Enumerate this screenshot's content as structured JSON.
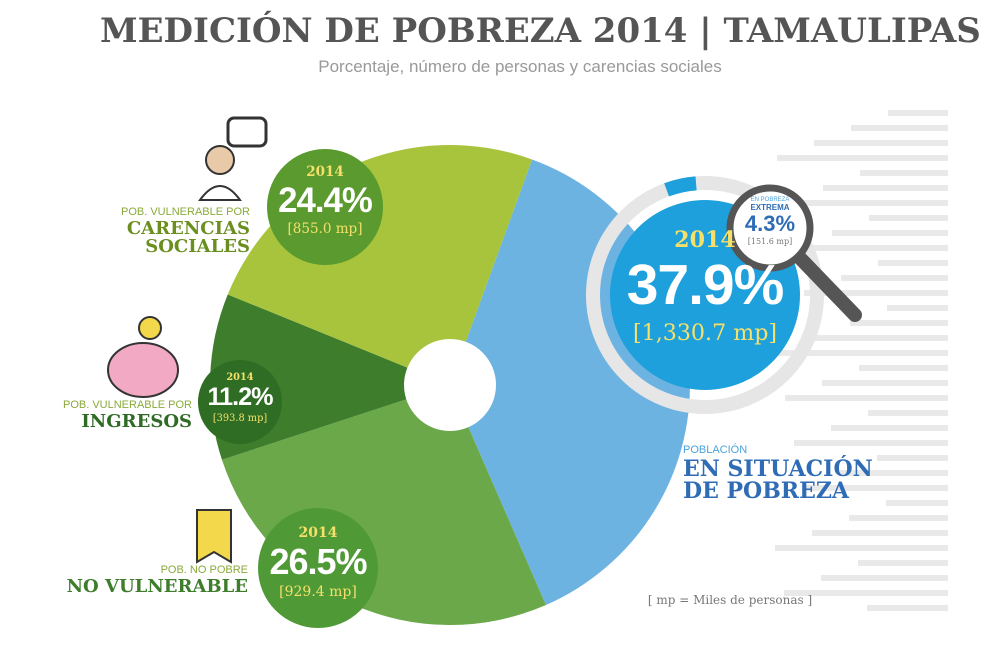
{
  "chart_data": {
    "type": "pie",
    "title": "MEDICIÓN DE POBREZA 2014 | TAMAULIPAS",
    "subtitle": "Porcentaje, número de personas y carencias sociales",
    "categories": [
      "EN SITUACIÓN DE POBREZA",
      "NO VULNERABLE",
      "INGRESOS",
      "CARENCIAS SOCIALES"
    ],
    "category_prefixes": [
      "POBLACIÓN",
      "POB. NO POBRE",
      "POB. VULNERABLE POR",
      "POB. VULNERABLE POR"
    ],
    "years": [
      "2014",
      "2014",
      "2014",
      "2014"
    ],
    "values": [
      37.9,
      26.5,
      11.2,
      24.4
    ],
    "value_labels": [
      "37.9%",
      "26.5%",
      "11.2%",
      "24.4%"
    ],
    "people_labels": [
      "[1,330.7 mp]",
      "[929.4 mp]",
      "[393.8 mp]",
      "[855.0 mp]"
    ],
    "colors": [
      "#6db3e2",
      "#6aa84a",
      "#3d7d2c",
      "#a7c43c"
    ],
    "text_colors": [
      "#2f6cb5",
      "#3d7d2c",
      "#2f6b25",
      "#6a8f1e"
    ],
    "extreme": {
      "prefix": "EN POBREZA",
      "name": "EXTREMA",
      "value": 4.3,
      "value_label": "4.3%",
      "people_label": "[151.6 mp]"
    },
    "note": "[ mp = Miles de personas ]"
  }
}
